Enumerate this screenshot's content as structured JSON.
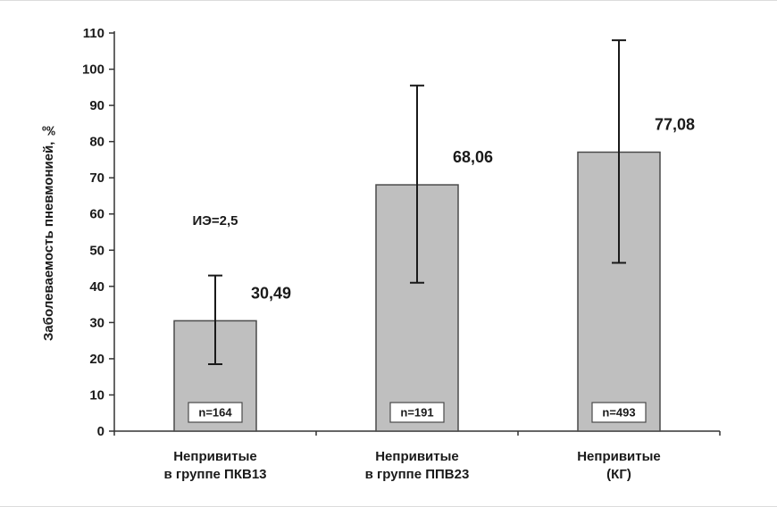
{
  "chart_data": {
    "type": "bar",
    "title": "",
    "ylabel": "Заболеваемость пневмонией, ‰",
    "ylim": [
      0,
      110
    ],
    "ytick_step": 10,
    "grid": false,
    "legend": "none",
    "categories": [
      {
        "line1": "Непривитые",
        "line2": "в группе ПКВ13"
      },
      {
        "line1": "Непривитые",
        "line2": "в группе ППВ23"
      },
      {
        "line1": "Непривитые",
        "line2": "(КГ)"
      }
    ],
    "values": [
      30.49,
      68.06,
      77.08
    ],
    "value_labels": [
      "30,49",
      "68,06",
      "77,08"
    ],
    "n_labels": [
      "n=164",
      "n=191",
      "n=493"
    ],
    "error_low": [
      18.5,
      41,
      46.5
    ],
    "error_high": [
      43,
      95.5,
      108
    ],
    "annotation": {
      "text": "ИЭ=2,5",
      "bar_index": 0,
      "y_value": 57
    },
    "colors": {
      "bar_fill": "#bfbfbf",
      "bar_border": "#4a4a4a",
      "error": "#1a1a1a",
      "axis": "#333333",
      "text": "#1a1a1a",
      "n_box_fill": "#ffffff",
      "n_box_border": "#4a4a4a"
    }
  }
}
